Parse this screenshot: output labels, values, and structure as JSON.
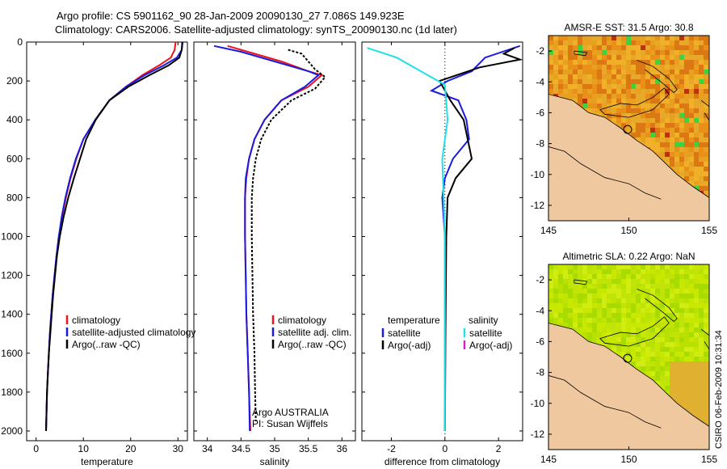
{
  "header": {
    "line1": "Argo profile: CS 5901162_90 28-Jan-2009 20090130_27 7.086S 149.923E",
    "line2": "Climatology: CARS2006. Satellite-adjusted climatology: synTS_20090130.nc (1d later)"
  },
  "side_label": "CSIRO 06-Feb-2009 10:31:34",
  "colors": {
    "clim": "#e8141e",
    "sat": "#1a1ae0",
    "argo": "#000000",
    "cyan": "#22e0e8",
    "magenta": "#d020d0",
    "land": "#f0c8a0"
  },
  "chart_data": [
    {
      "type": "line",
      "xlabel": "temperature",
      "y_ticks": [
        0,
        200,
        400,
        600,
        800,
        1000,
        1200,
        1400,
        1600,
        1800,
        2000
      ],
      "x_ticks": [
        0,
        10,
        20,
        30
      ],
      "xlim": [
        -2,
        32
      ],
      "ylim": [
        2050,
        0
      ],
      "legend": [
        "climatology",
        "satellite-adjusted climatology",
        "Argo(..raw -QC)"
      ],
      "series": [
        {
          "name": "climatology",
          "color": "clim",
          "points": [
            [
              29.5,
              0
            ],
            [
              29.3,
              40
            ],
            [
              28.5,
              80
            ],
            [
              26,
              120
            ],
            [
              22.5,
              170
            ],
            [
              19,
              230
            ],
            [
              15.5,
              300
            ],
            [
              12.5,
              400
            ],
            [
              10,
              500
            ],
            [
              8.5,
              600
            ],
            [
              7.3,
              700
            ],
            [
              6.3,
              800
            ],
            [
              5.5,
              900
            ],
            [
              4.8,
              1000
            ],
            [
              4.3,
              1100
            ],
            [
              3.9,
              1200
            ],
            [
              3.5,
              1300
            ],
            [
              3.2,
              1400
            ],
            [
              2.9,
              1500
            ],
            [
              2.7,
              1600
            ],
            [
              2.5,
              1700
            ],
            [
              2.3,
              1800
            ],
            [
              2.2,
              1900
            ],
            [
              2.1,
              2000
            ]
          ]
        },
        {
          "name": "satellite-adjusted climatology",
          "color": "sat",
          "points": [
            [
              31,
              0
            ],
            [
              30.8,
              40
            ],
            [
              29.8,
              80
            ],
            [
              27,
              120
            ],
            [
              23,
              170
            ],
            [
              19,
              230
            ],
            [
              15.5,
              300
            ],
            [
              12.5,
              400
            ],
            [
              10,
              500
            ],
            [
              8.4,
              600
            ],
            [
              7.2,
              700
            ],
            [
              6.2,
              800
            ],
            [
              5.4,
              900
            ],
            [
              4.8,
              1000
            ],
            [
              4.3,
              1100
            ],
            [
              3.9,
              1200
            ],
            [
              3.5,
              1300
            ],
            [
              3.2,
              1400
            ],
            [
              2.9,
              1500
            ],
            [
              2.7,
              1600
            ],
            [
              2.5,
              1700
            ],
            [
              2.3,
              1800
            ],
            [
              2.2,
              1900
            ],
            [
              2.1,
              2000
            ]
          ]
        },
        {
          "name": "Argo(..raw -QC)",
          "color": "argo",
          "points": [
            [
              30.9,
              0
            ],
            [
              30.8,
              40
            ],
            [
              30.3,
              80
            ],
            [
              28,
              120
            ],
            [
              24,
              170
            ],
            [
              19.5,
              230
            ],
            [
              15.5,
              300
            ],
            [
              12.6,
              400
            ],
            [
              10.6,
              500
            ],
            [
              9.3,
              600
            ],
            [
              8,
              700
            ],
            [
              6.8,
              800
            ],
            [
              5.8,
              900
            ],
            [
              5,
              1000
            ],
            [
              4.4,
              1100
            ],
            [
              4,
              1200
            ],
            [
              3.6,
              1300
            ],
            [
              3.3,
              1400
            ],
            [
              3,
              1500
            ],
            [
              2.7,
              1600
            ],
            [
              2.5,
              1700
            ],
            [
              2.3,
              1800
            ],
            [
              2.2,
              1900
            ],
            [
              2.1,
              2000
            ]
          ]
        }
      ]
    },
    {
      "type": "line",
      "xlabel": "salinity",
      "x_ticks": [
        34,
        34.5,
        35,
        35.5,
        36
      ],
      "xlim": [
        33.8,
        36.2
      ],
      "ylim": [
        2050,
        0
      ],
      "legend": [
        "climatology",
        "satellite adj. clim.",
        "Argo(..raw -QC)"
      ],
      "annotation": [
        "Argo AUSTRALIA",
        "PI: Susan Wijffels"
      ],
      "series": [
        {
          "name": "climatology",
          "color": "clim",
          "points": [
            [
              34.3,
              20
            ],
            [
              34.6,
              50
            ],
            [
              35.1,
              100
            ],
            [
              35.5,
              150
            ],
            [
              35.7,
              170
            ],
            [
              35.5,
              230
            ],
            [
              35.1,
              300
            ],
            [
              34.85,
              400
            ],
            [
              34.7,
              500
            ],
            [
              34.62,
              600
            ],
            [
              34.58,
              700
            ],
            [
              34.56,
              800
            ],
            [
              34.56,
              900
            ],
            [
              34.56,
              1000
            ],
            [
              34.57,
              1200
            ],
            [
              34.58,
              1400
            ],
            [
              34.6,
              1600
            ],
            [
              34.62,
              1800
            ],
            [
              34.64,
              2000
            ]
          ]
        },
        {
          "name": "satellite adj. clim.",
          "color": "sat",
          "points": [
            [
              34.1,
              20
            ],
            [
              34.5,
              50
            ],
            [
              35,
              100
            ],
            [
              35.5,
              150
            ],
            [
              35.65,
              170
            ],
            [
              35.45,
              230
            ],
            [
              35.1,
              300
            ],
            [
              34.85,
              400
            ],
            [
              34.7,
              500
            ],
            [
              34.62,
              600
            ],
            [
              34.57,
              700
            ],
            [
              34.56,
              800
            ],
            [
              34.56,
              900
            ],
            [
              34.56,
              1000
            ],
            [
              34.57,
              1200
            ],
            [
              34.58,
              1400
            ],
            [
              34.6,
              1600
            ],
            [
              34.62,
              1800
            ],
            [
              34.63,
              2000
            ]
          ]
        },
        {
          "name": "Argo(..raw -QC)",
          "color": "argo",
          "points": [
            [
              35.2,
              40
            ],
            [
              35.4,
              60
            ],
            [
              35.5,
              100
            ],
            [
              35.6,
              140
            ],
            [
              35.75,
              180
            ],
            [
              35.6,
              240
            ],
            [
              35.25,
              300
            ],
            [
              34.95,
              400
            ],
            [
              34.8,
              500
            ],
            [
              34.72,
              600
            ],
            [
              34.68,
              700
            ],
            [
              34.66,
              800
            ],
            [
              34.66,
              900
            ],
            [
              34.66,
              1000
            ],
            [
              34.67,
              1200
            ],
            [
              34.68,
              1400
            ],
            [
              34.7,
              1600
            ],
            [
              34.71,
              1800
            ],
            [
              34.72,
              1950
            ]
          ]
        }
      ]
    },
    {
      "type": "line",
      "xlabel": "difference from climatology",
      "x_ticks": [
        -2,
        0,
        2
      ],
      "xlim": [
        -3.1,
        2.9
      ],
      "ylim": [
        2050,
        0
      ],
      "legend_left": {
        "title": "temperature",
        "items": [
          "satellite",
          "Argo(-adj)"
        ]
      },
      "legend_right": {
        "title": "salinity",
        "items": [
          "satellite",
          "Argo(-adj)"
        ]
      },
      "series": [
        {
          "name": "temperature satellite",
          "color": "sat",
          "points": [
            [
              2.8,
              20
            ],
            [
              1.5,
              80
            ],
            [
              1,
              150
            ],
            [
              0.1,
              200
            ],
            [
              -0.5,
              250
            ],
            [
              0.5,
              300
            ],
            [
              0.8,
              400
            ],
            [
              0.9,
              500
            ],
            [
              0.3,
              600
            ],
            [
              0,
              700
            ],
            [
              -0.1,
              800
            ],
            [
              0,
              1000
            ],
            [
              0,
              1500
            ],
            [
              0,
              2000
            ]
          ]
        },
        {
          "name": "temperature Argo(-adj)",
          "color": "argo",
          "points": [
            [
              2.6,
              30
            ],
            [
              2.2,
              60
            ],
            [
              2.8,
              90
            ],
            [
              1.3,
              130
            ],
            [
              -0.2,
              200
            ],
            [
              0.2,
              300
            ],
            [
              0.7,
              400
            ],
            [
              1,
              600
            ],
            [
              0.4,
              700
            ],
            [
              0.1,
              800
            ],
            [
              0.05,
              1000
            ],
            [
              0.02,
              1500
            ],
            [
              0,
              2000
            ]
          ]
        },
        {
          "name": "salinity satellite",
          "color": "cyan",
          "points": [
            [
              -2.9,
              30
            ],
            [
              -1.8,
              80
            ],
            [
              -0.9,
              150
            ],
            [
              0,
              220
            ],
            [
              0.1,
              400
            ],
            [
              0,
              500
            ],
            [
              -0.1,
              600
            ],
            [
              -0.05,
              800
            ],
            [
              0,
              1000
            ],
            [
              0,
              2000
            ]
          ]
        }
      ]
    },
    {
      "type": "heatmap",
      "title": "AMSR-E SST: 31.5 Argo: 30.8",
      "x_ticks": [
        145,
        150,
        155
      ],
      "y_ticks": [
        -2,
        -4,
        -6,
        -8,
        -10,
        -12
      ],
      "xlim": [
        145,
        155
      ],
      "ylim": [
        -13,
        -1
      ],
      "profile_location": [
        149.923,
        -7.086
      ]
    },
    {
      "type": "heatmap",
      "title": "Altimetric SLA: 0.22 Argo: NaN",
      "x_ticks": [
        145,
        150,
        155
      ],
      "y_ticks": [
        -2,
        -4,
        -6,
        -8,
        -10,
        -12
      ],
      "xlim": [
        145,
        155
      ],
      "ylim": [
        -13,
        -1
      ],
      "profile_location": [
        149.923,
        -7.086
      ]
    }
  ]
}
